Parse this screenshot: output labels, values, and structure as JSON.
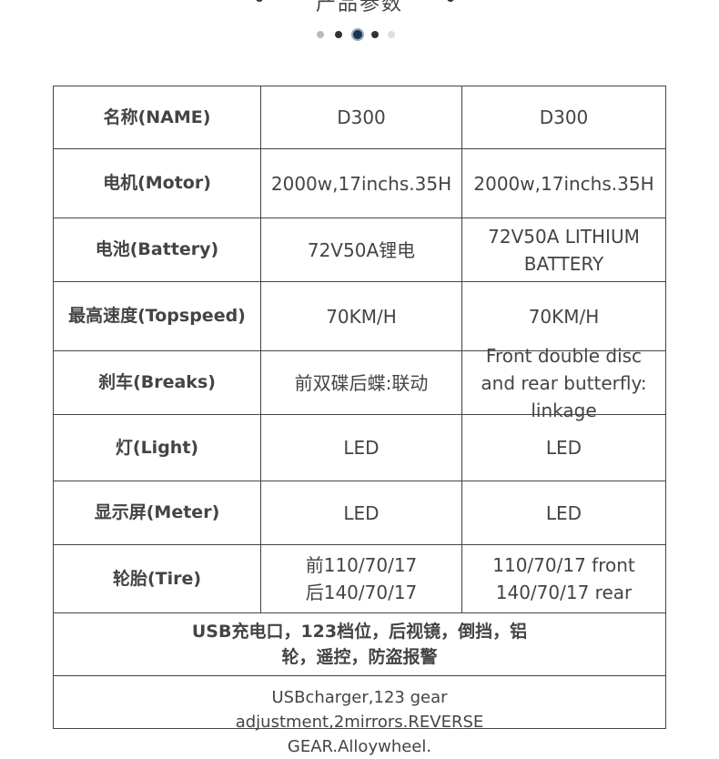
{
  "header": {
    "title": "产品参数"
  },
  "table": {
    "rows": [
      [
        "名称(NAME)",
        "D300",
        "D300"
      ],
      [
        "电机(Motor)",
        "2000w,17inchs.35H",
        "2000w,17inchs.35H"
      ],
      [
        "电池(Battery)",
        "72V50A锂电",
        "72V50A LITHIUM BATTERY"
      ],
      [
        "最高速度(Topspeed)",
        "70KM/H",
        "70KM/H"
      ],
      [
        "刹车(Breaks)",
        "前双碟后蝶:联动",
        "Front double disc and rear butterfly: linkage"
      ],
      [
        "灯(Light)",
        "LED",
        "LED"
      ],
      [
        "显示屏(Meter)",
        "LED",
        "LED"
      ],
      [
        "轮胎(Tire)",
        [
          "前110/70/17",
          "后140/70/17"
        ],
        [
          "110/70/17 front",
          "140/70/17 rear"
        ]
      ]
    ],
    "notes": [
      "USB充电口，123档位，后视镜，倒挡，铝轮，遥控，防盗报警",
      "USBcharger,123 gear adjustment,2mirrors.REVERSE GEAR.Alloywheel."
    ]
  }
}
